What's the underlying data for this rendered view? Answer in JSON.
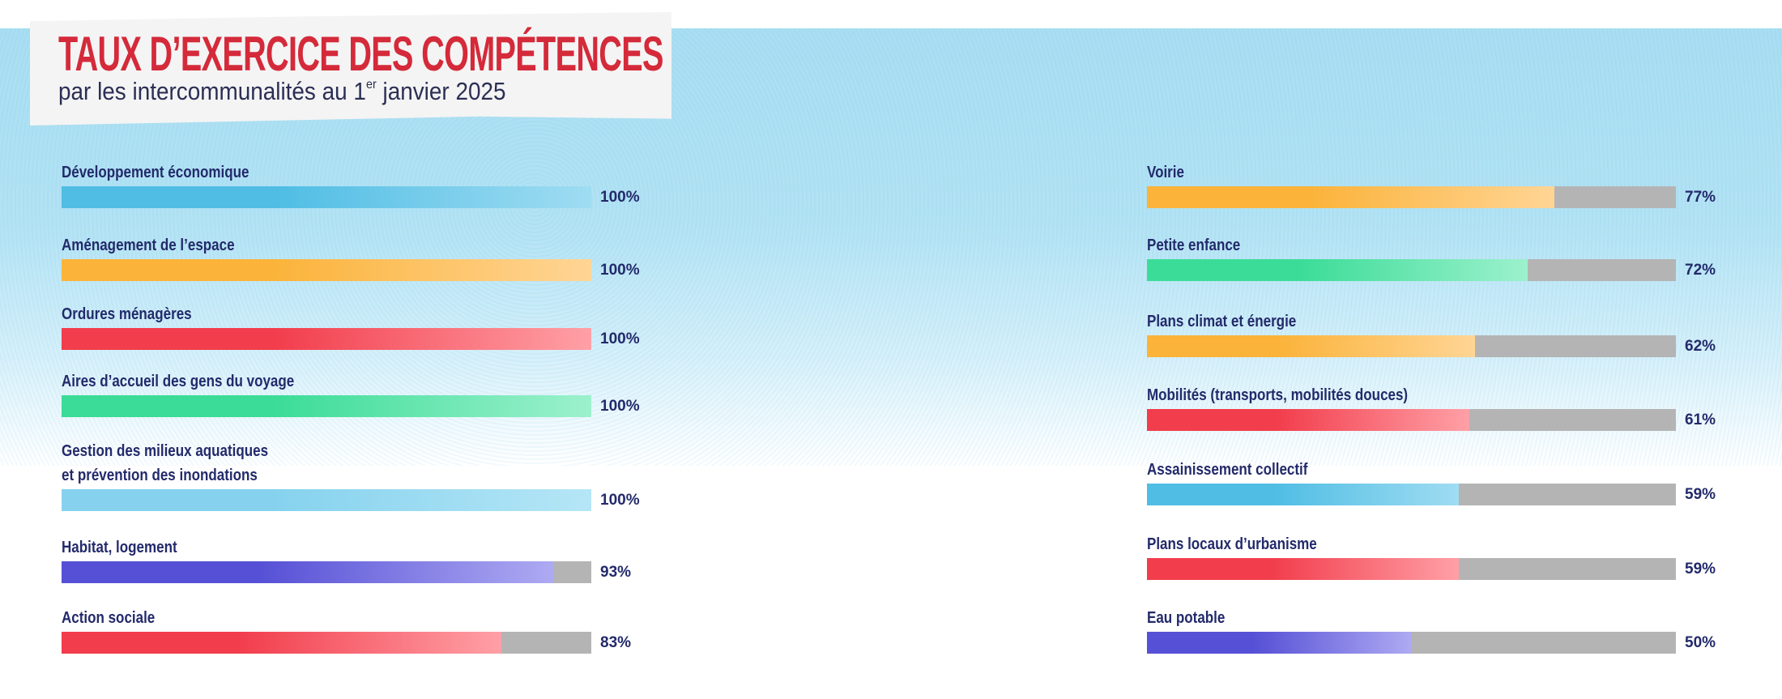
{
  "header": {
    "title": "TAUX D’EXERCICE DES COMPÉTENCES",
    "subtitle_pre": "par les intercommunalités au 1",
    "subtitle_sup": "er",
    "subtitle_post": " janvier 2025"
  },
  "colors": {
    "blue": [
      "#4fbde4",
      "#9fdcf2"
    ],
    "blue_light": [
      "#86d2ee",
      "#b5e6f6"
    ],
    "orange": [
      "#fbb33a",
      "#ffd595"
    ],
    "red": [
      "#f23d4c",
      "#ffa0a6"
    ],
    "green": [
      "#3bdc98",
      "#9cf1cc"
    ],
    "purple": [
      "#5650d6",
      "#aeaaf2"
    ],
    "remainder": "#b4b4b4",
    "text": "#232a6b",
    "title": "#d42a3a"
  },
  "chart_data": {
    "type": "bar",
    "title": "TAUX D’EXERCICE DES COMPÉTENCES",
    "subtitle": "par les intercommunalités au 1er janvier 2025",
    "unit": "%",
    "xlim": [
      0,
      100
    ],
    "grid": false,
    "columns": [
      [
        {
          "label": "Développement économique",
          "value": 100,
          "display": "100%",
          "color": "blue"
        },
        {
          "label": "Aménagement de l’espace",
          "value": 100,
          "display": "100%",
          "color": "orange"
        },
        {
          "label": "Ordures ménagères",
          "value": 100,
          "display": "100%",
          "color": "red"
        },
        {
          "label": "Aires d’accueil des gens du voyage",
          "value": 100,
          "display": "100%",
          "color": "green"
        },
        {
          "label": "Gestion des milieux aquatiques\net prévention des inondations",
          "value": 100,
          "display": "100%",
          "color": "blue_light"
        },
        {
          "label": "Habitat, logement",
          "value": 93,
          "display": "93%",
          "color": "purple"
        },
        {
          "label": "Action sociale",
          "value": 83,
          "display": "83%",
          "color": "red"
        }
      ],
      [
        {
          "label": "Voirie",
          "value": 77,
          "display": "77%",
          "color": "orange"
        },
        {
          "label": "Petite enfance",
          "value": 72,
          "display": "72%",
          "color": "green"
        },
        {
          "label": "Plans climat et énergie",
          "value": 62,
          "display": "62%",
          "color": "orange"
        },
        {
          "label": "Mobilités (transports, mobilités douces)",
          "value": 61,
          "display": "61%",
          "color": "red"
        },
        {
          "label": "Assainissement collectif",
          "value": 59,
          "display": "59%",
          "color": "blue"
        },
        {
          "label": "Plans locaux d’urbanisme",
          "value": 59,
          "display": "59%",
          "color": "red"
        },
        {
          "label": "Eau potable",
          "value": 50,
          "display": "50%",
          "color": "purple"
        }
      ]
    ]
  }
}
